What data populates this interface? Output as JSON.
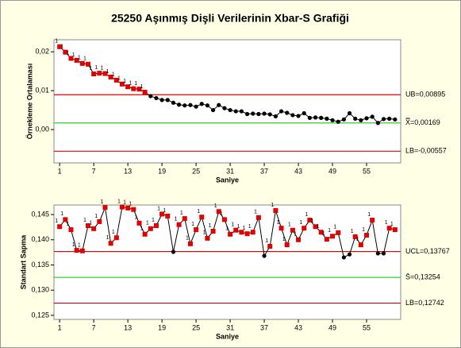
{
  "chart_data": [
    {
      "type": "line",
      "title": "25250 Aşınmış Dişli Verilerinin Xbar-S Grafiği",
      "x_label": "Saniye",
      "y_label": "Örnekleme Ortalaması",
      "x": [
        1,
        2,
        3,
        4,
        5,
        6,
        7,
        8,
        9,
        10,
        11,
        12,
        13,
        14,
        15,
        16,
        17,
        18,
        19,
        20,
        21,
        22,
        23,
        24,
        25,
        26,
        27,
        28,
        29,
        30,
        31,
        32,
        33,
        34,
        35,
        36,
        37,
        38,
        39,
        40,
        41,
        42,
        43,
        44,
        45,
        46,
        47,
        48,
        49,
        50,
        51,
        52,
        53,
        54,
        55,
        56,
        57,
        58,
        59,
        60
      ],
      "series": [
        {
          "color": "#000000",
          "flag_color": "#e00000",
          "flag_label": "1",
          "values": [
            0.0213,
            0.0199,
            0.0183,
            0.0178,
            0.017,
            0.0168,
            0.0143,
            0.0145,
            0.0144,
            0.0135,
            0.0127,
            0.0117,
            0.011,
            0.0105,
            0.0104,
            0.0096,
            0.0086,
            0.0081,
            0.0076,
            0.0076,
            0.0069,
            0.0064,
            0.0062,
            0.0063,
            0.0059,
            0.0066,
            0.0062,
            0.005,
            0.0063,
            0.0055,
            0.005,
            0.0047,
            0.0047,
            0.004,
            0.0041,
            0.004,
            0.0041,
            0.0039,
            0.0034,
            0.0047,
            0.0043,
            0.0037,
            0.0035,
            0.0042,
            0.003,
            0.0031,
            0.003,
            0.0028,
            0.0024,
            0.002,
            0.0026,
            0.0042,
            0.0028,
            0.0024,
            0.0029,
            0.0033,
            0.0017,
            0.0027,
            0.0028,
            0.0026
          ]
        }
      ],
      "control_lines": [
        {
          "value": 0.00895,
          "label": "UB=0,00895",
          "color": "#e00000"
        },
        {
          "value": 0.00169,
          "label": "X̿=0,00169",
          "color": "#33cc33"
        },
        {
          "value": -0.00557,
          "label": "LB=-0,00557",
          "color": "#e00000"
        }
      ],
      "xlim": [
        0,
        61
      ],
      "xticks": [
        1,
        7,
        13,
        19,
        25,
        31,
        37,
        43,
        49,
        55
      ],
      "ylim": [
        -0.00857,
        0.0231
      ],
      "yticks": [
        {
          "value": 0.0,
          "label": "0,00"
        },
        {
          "value": 0.01,
          "label": "0,01"
        },
        {
          "value": 0.02,
          "label": "0,02"
        }
      ]
    },
    {
      "type": "line",
      "x_label": "Saniye",
      "y_label": "Standart Sapma",
      "x": [
        1,
        2,
        3,
        4,
        5,
        6,
        7,
        8,
        9,
        10,
        11,
        12,
        13,
        14,
        15,
        16,
        17,
        18,
        19,
        20,
        21,
        22,
        23,
        24,
        25,
        26,
        27,
        28,
        29,
        30,
        31,
        32,
        33,
        34,
        35,
        36,
        37,
        38,
        39,
        40,
        41,
        42,
        43,
        44,
        45,
        46,
        47,
        48,
        49,
        50,
        51,
        52,
        53,
        54,
        55,
        56,
        57,
        58,
        59,
        60
      ],
      "series": [
        {
          "color": "#000000",
          "flag_color": "#e00000",
          "flag_label": "1",
          "values": [
            0.1426,
            0.144,
            0.142,
            0.1379,
            0.1378,
            0.1428,
            0.1422,
            0.1436,
            0.1464,
            0.1393,
            0.1404,
            0.1465,
            0.1463,
            0.146,
            0.1433,
            0.1411,
            0.1422,
            0.1428,
            0.1451,
            0.1447,
            0.1376,
            0.143,
            0.1442,
            0.1392,
            0.142,
            0.1445,
            0.1403,
            0.1417,
            0.1456,
            0.144,
            0.1411,
            0.1419,
            0.1415,
            0.1412,
            0.1415,
            0.1444,
            0.1368,
            0.1387,
            0.1458,
            0.1423,
            0.139,
            0.1419,
            0.14,
            0.1423,
            0.1439,
            0.1426,
            0.1415,
            0.1401,
            0.1407,
            0.1414,
            0.1365,
            0.1371,
            0.1406,
            0.139,
            0.1409,
            0.1439,
            0.1373,
            0.1373,
            0.1423,
            0.142
          ]
        }
      ],
      "control_lines": [
        {
          "value": 0.13767,
          "label": "UCL=0,13767",
          "color": "#e00000"
        },
        {
          "value": 0.13254,
          "label": "S̄=0,13254",
          "color": "#33cc33"
        },
        {
          "value": 0.12742,
          "label": "LB=0,12742",
          "color": "#e00000"
        }
      ],
      "xlim": [
        0,
        61
      ],
      "xticks": [
        1,
        7,
        13,
        19,
        25,
        31,
        37,
        43,
        49,
        55
      ],
      "ylim": [
        0.1242,
        0.1469
      ],
      "yticks": [
        {
          "value": 0.125,
          "label": "0,125"
        },
        {
          "value": 0.13,
          "label": "0,130"
        },
        {
          "value": 0.135,
          "label": "0,135"
        },
        {
          "value": 0.14,
          "label": "0,140"
        },
        {
          "value": 0.145,
          "label": "0,145"
        }
      ]
    }
  ]
}
